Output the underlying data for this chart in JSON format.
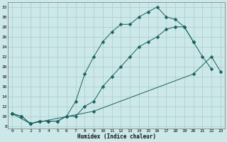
{
  "xlabel": "Humidex (Indice chaleur)",
  "xlim": [
    -0.5,
    23.5
  ],
  "ylim": [
    7.5,
    33
  ],
  "yticks": [
    8,
    10,
    12,
    14,
    16,
    18,
    20,
    22,
    24,
    26,
    28,
    30,
    32
  ],
  "xticks": [
    0,
    1,
    2,
    3,
    4,
    5,
    6,
    7,
    8,
    9,
    10,
    11,
    12,
    13,
    14,
    15,
    16,
    17,
    18,
    19,
    20,
    21,
    22,
    23
  ],
  "bg_color": "#cce8e8",
  "grid_color": "#aacccc",
  "line_color": "#1a6060",
  "line1_x": [
    0,
    1,
    2,
    3,
    4,
    5,
    6,
    7,
    8,
    9,
    10,
    11,
    12,
    13,
    14,
    15,
    16,
    17,
    18,
    19,
    20,
    21,
    22
  ],
  "line1_y": [
    10.5,
    10,
    8.5,
    9,
    9,
    9,
    10,
    13,
    18.5,
    22,
    25,
    27,
    28.5,
    28.5,
    30,
    31,
    32,
    30,
    29.5,
    28,
    25,
    22,
    19.5
  ],
  "line2_x": [
    0,
    1,
    2,
    3,
    4,
    5,
    6,
    7,
    8,
    9,
    10,
    11,
    12,
    13,
    14,
    15,
    16,
    17,
    18,
    19,
    20
  ],
  "line2_y": [
    10.5,
    10,
    8.5,
    9,
    9,
    9,
    10,
    10,
    12,
    13,
    16,
    18,
    20,
    22,
    24,
    25,
    26,
    27.5,
    28,
    28,
    25
  ],
  "line3_x": [
    0,
    2,
    9,
    20,
    22,
    23
  ],
  "line3_y": [
    10.5,
    8.5,
    11,
    18.5,
    22,
    19
  ],
  "markersize": 2.5
}
